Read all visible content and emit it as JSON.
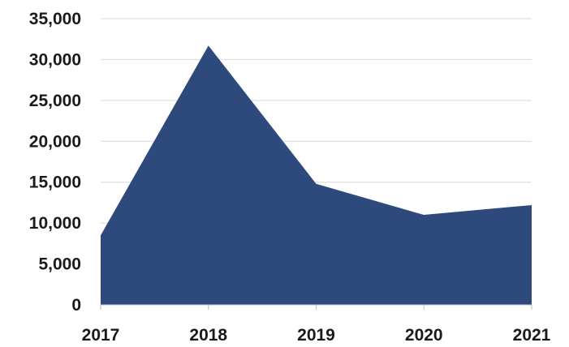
{
  "chart_data": {
    "type": "area",
    "title": "",
    "xlabel": "",
    "ylabel": "",
    "categories": [
      "2017",
      "2018",
      "2019",
      "2020",
      "2021"
    ],
    "values": [
      8500,
      31700,
      14800,
      11000,
      12200
    ],
    "ylim": [
      0,
      35000
    ],
    "yticks": [
      "0",
      "5,000",
      "10,000",
      "15,000",
      "20,000",
      "25,000",
      "30,000",
      "35,000"
    ],
    "grid": true,
    "legend": "none",
    "colors": {
      "area": "#2e4a7d",
      "grid": "#d9d9d9",
      "text": "#1a1a1a"
    }
  }
}
